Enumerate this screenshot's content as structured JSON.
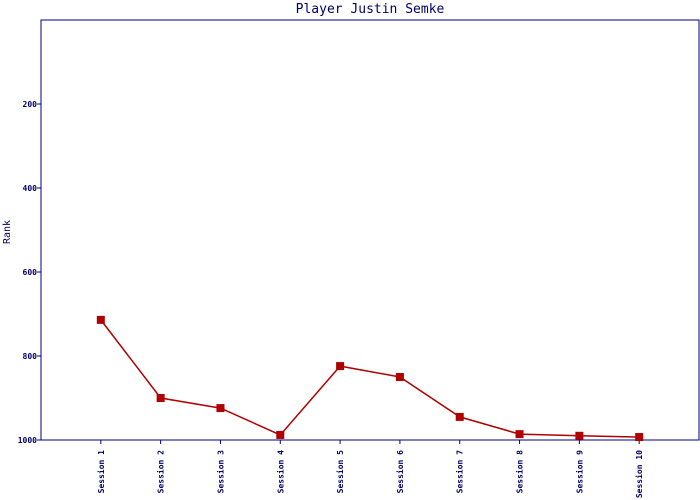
{
  "chart_data": {
    "type": "line",
    "title": "Player Justin Semke",
    "y_label": "Rank",
    "categories": [
      "Session 1",
      "Session 2",
      "Session 3",
      "Session 4",
      "Session 5",
      "Session 6",
      "Session 7",
      "Session 8",
      "Session 9",
      "Session 10"
    ],
    "series": [
      {
        "name": "Rank",
        "color": "#b00000",
        "values": [
          714,
          900,
          924,
          988,
          824,
          850,
          945,
          986,
          990,
          993
        ]
      }
    ],
    "ylim": [
      0,
      1000
    ],
    "yticks": [
      200,
      400,
      600,
      800,
      1000
    ],
    "y_inverted": true,
    "axis_color": "#000080"
  }
}
